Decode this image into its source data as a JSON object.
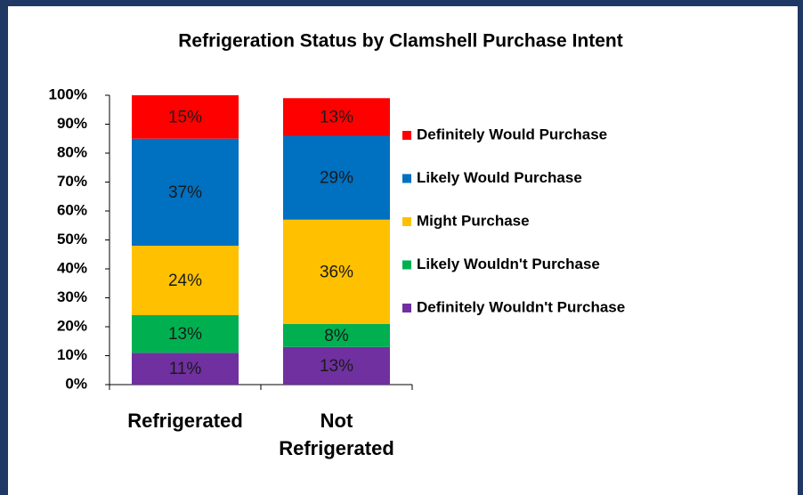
{
  "chart_data": {
    "type": "stacked_bar",
    "title": "Refrigeration Status by Clamshell Purchase Intent",
    "categories": [
      "Refrigerated",
      "Not Refrigerated"
    ],
    "series": [
      {
        "name": "Definitely Wouldn't Purchase",
        "color": "#7030a0",
        "values": [
          11,
          13
        ],
        "value_labels": [
          "11%",
          "13%"
        ]
      },
      {
        "name": "Likely Wouldn't Purchase",
        "color": "#00b050",
        "values": [
          13,
          8
        ],
        "value_labels": [
          "13%",
          "8%"
        ]
      },
      {
        "name": "Might Purchase",
        "color": "#ffc000",
        "values": [
          24,
          36
        ],
        "value_labels": [
          "24%",
          "36%"
        ]
      },
      {
        "name": "Likely Would Purchase",
        "color": "#0070c0",
        "values": [
          37,
          29
        ],
        "value_labels": [
          "37%",
          "29%"
        ]
      },
      {
        "name": "Definitely Would Purchase",
        "color": "#ff0000",
        "values": [
          15,
          13
        ],
        "value_labels": [
          "15%",
          "13%"
        ]
      }
    ],
    "ylim": [
      0,
      100
    ],
    "yticks": [
      {
        "value": 0,
        "label": "0%"
      },
      {
        "value": 10,
        "label": "10%"
      },
      {
        "value": 20,
        "label": "20%"
      },
      {
        "value": 30,
        "label": "30%"
      },
      {
        "value": 40,
        "label": "40%"
      },
      {
        "value": 50,
        "label": "50%"
      },
      {
        "value": 60,
        "label": "60%"
      },
      {
        "value": 70,
        "label": "70%"
      },
      {
        "value": 80,
        "label": "80%"
      },
      {
        "value": 90,
        "label": "90%"
      },
      {
        "value": 100,
        "label": "100%"
      }
    ],
    "legend": "right"
  }
}
